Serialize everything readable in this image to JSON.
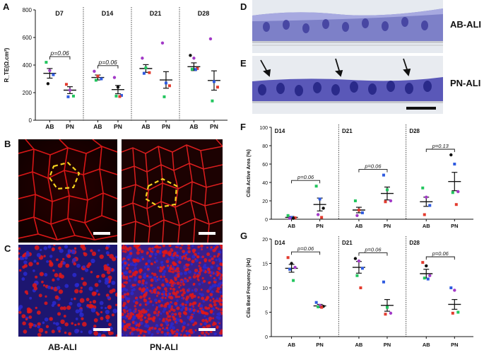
{
  "panel_labels": {
    "A": "A",
    "B": "B",
    "C": "C",
    "D": "D",
    "E": "E",
    "F": "F",
    "G": "G"
  },
  "image_captions": {
    "ab_ali_bottom": "AB-ALI",
    "pn_ali_bottom": "PN-ALI",
    "d_side": "AB-ALI",
    "e_side": "PN-ALI"
  },
  "colors": {
    "green": "#22c55e",
    "red": "#e33b2e",
    "blue": "#2f5be0",
    "purple": "#a23ac7",
    "black": "#111111",
    "fluor_red": "#e21818",
    "fluor_blue": "#2a2ad0",
    "stain_purple": "#6a4fa8",
    "dash_yellow": "#f5d21e"
  },
  "chart_data": [
    {
      "id": "A",
      "type": "scatter",
      "ylabel": "R_TE(Ω.cm²)",
      "ylim": [
        0,
        800
      ],
      "yticks": [
        0,
        200,
        400,
        600,
        800
      ],
      "groups": [
        "D7",
        "D14",
        "D21",
        "D28"
      ],
      "categories": [
        "AB",
        "PN"
      ],
      "annotations": [
        {
          "group": 0,
          "text": "p=0.06"
        },
        {
          "group": 1,
          "text": "p=0.06"
        }
      ],
      "series": [
        {
          "group": 0,
          "cat": 0,
          "mean": 340,
          "sem": 35,
          "points": [
            {
              "v": 420,
              "c": "green"
            },
            {
              "v": 360,
              "c": "purple"
            },
            {
              "v": 330,
              "c": "blue"
            },
            {
              "v": 265,
              "c": "black"
            }
          ]
        },
        {
          "group": 0,
          "cat": 1,
          "mean": 218,
          "sem": 25,
          "points": [
            {
              "v": 260,
              "c": "red"
            },
            {
              "v": 218,
              "c": "purple"
            },
            {
              "v": 175,
              "c": "green"
            },
            {
              "v": 170,
              "c": "blue"
            }
          ]
        },
        {
          "group": 1,
          "cat": 0,
          "mean": 310,
          "sem": 18,
          "points": [
            {
              "v": 355,
              "c": "purple"
            },
            {
              "v": 320,
              "c": "red"
            },
            {
              "v": 300,
              "c": "blue"
            },
            {
              "v": 290,
              "c": "green"
            }
          ]
        },
        {
          "group": 1,
          "cat": 1,
          "mean": 222,
          "sem": 30,
          "points": [
            {
              "v": 310,
              "c": "purple"
            },
            {
              "v": 240,
              "c": "black"
            },
            {
              "v": 180,
              "c": "blue"
            },
            {
              "v": 175,
              "c": "green"
            },
            {
              "v": 172,
              "c": "red"
            }
          ]
        },
        {
          "group": 2,
          "cat": 0,
          "mean": 375,
          "sem": 28,
          "points": [
            {
              "v": 450,
              "c": "purple"
            },
            {
              "v": 380,
              "c": "green"
            },
            {
              "v": 345,
              "c": "red"
            },
            {
              "v": 340,
              "c": "blue"
            }
          ]
        },
        {
          "group": 2,
          "cat": 1,
          "mean": 292,
          "sem": 60,
          "points": [
            {
              "v": 560,
              "c": "purple"
            },
            {
              "v": 270,
              "c": "blue"
            },
            {
              "v": 250,
              "c": "red"
            },
            {
              "v": 170,
              "c": "green"
            }
          ]
        },
        {
          "group": 3,
          "cat": 0,
          "mean": 388,
          "sem": 28,
          "points": [
            {
              "v": 470,
              "c": "black"
            },
            {
              "v": 450,
              "c": "purple"
            },
            {
              "v": 375,
              "c": "red"
            },
            {
              "v": 370,
              "c": "green"
            },
            {
              "v": 368,
              "c": "blue"
            }
          ]
        },
        {
          "group": 3,
          "cat": 1,
          "mean": 288,
          "sem": 70,
          "points": [
            {
              "v": 590,
              "c": "purple"
            },
            {
              "v": 280,
              "c": "blue"
            },
            {
              "v": 240,
              "c": "red"
            },
            {
              "v": 140,
              "c": "green"
            }
          ]
        }
      ]
    },
    {
      "id": "F",
      "type": "scatter",
      "ylabel": "Cilia Active Area (%)",
      "ylim": [
        0,
        100
      ],
      "yticks": [
        0,
        20,
        40,
        60,
        80,
        100
      ],
      "groups": [
        "D14",
        "D21",
        "D28"
      ],
      "categories": [
        "AB",
        "PN"
      ],
      "annotations": [
        {
          "group": 0,
          "text": "p=0.06"
        },
        {
          "group": 1,
          "text": "p=0.06"
        },
        {
          "group": 2,
          "text": "p=0.13"
        }
      ],
      "series": [
        {
          "group": 0,
          "cat": 0,
          "mean": 2,
          "sem": 1,
          "points": [
            {
              "v": 4,
              "c": "green"
            },
            {
              "v": 2,
              "c": "blue"
            },
            {
              "v": 1.5,
              "c": "red"
            },
            {
              "v": 1,
              "c": "purple"
            },
            {
              "v": 1,
              "c": "black"
            }
          ]
        },
        {
          "group": 0,
          "cat": 1,
          "mean": 16,
          "sem": 7,
          "points": [
            {
              "v": 36,
              "c": "green"
            },
            {
              "v": 22,
              "c": "blue"
            },
            {
              "v": 12,
              "c": "black"
            },
            {
              "v": 5,
              "c": "purple"
            },
            {
              "v": 2,
              "c": "red"
            }
          ]
        },
        {
          "group": 1,
          "cat": 0,
          "mean": 10,
          "sem": 3,
          "points": [
            {
              "v": 20,
              "c": "green"
            },
            {
              "v": 10,
              "c": "red"
            },
            {
              "v": 7,
              "c": "blue"
            },
            {
              "v": 4,
              "c": "purple"
            }
          ]
        },
        {
          "group": 1,
          "cat": 1,
          "mean": 28,
          "sem": 7,
          "points": [
            {
              "v": 48,
              "c": "blue"
            },
            {
              "v": 32,
              "c": "green"
            },
            {
              "v": 20,
              "c": "purple"
            },
            {
              "v": 19,
              "c": "red"
            }
          ]
        },
        {
          "group": 2,
          "cat": 0,
          "mean": 19,
          "sem": 5,
          "points": [
            {
              "v": 34,
              "c": "green"
            },
            {
              "v": 24,
              "c": "purple"
            },
            {
              "v": 15,
              "c": "blue"
            },
            {
              "v": 5,
              "c": "red"
            }
          ]
        },
        {
          "group": 2,
          "cat": 1,
          "mean": 41,
          "sem": 10,
          "points": [
            {
              "v": 70,
              "c": "black"
            },
            {
              "v": 60,
              "c": "blue"
            },
            {
              "v": 30,
              "c": "purple"
            },
            {
              "v": 29,
              "c": "green"
            },
            {
              "v": 16,
              "c": "red"
            }
          ]
        }
      ]
    },
    {
      "id": "G",
      "type": "scatter",
      "ylabel": "Cilia Beat Frequency (Hz)",
      "ylim": [
        0,
        20
      ],
      "yticks": [
        0,
        5,
        10,
        15,
        20
      ],
      "groups": [
        "D14",
        "D21",
        "D28"
      ],
      "categories": [
        "AB",
        "PN"
      ],
      "annotations": [
        {
          "group": 0,
          "text": "p=0.06"
        },
        {
          "group": 1,
          "text": "p=0.06"
        },
        {
          "group": 2,
          "text": "p=0.06"
        }
      ],
      "series": [
        {
          "group": 0,
          "cat": 0,
          "mean": 14,
          "sem": 0.8,
          "points": [
            {
              "v": 16.2,
              "c": "red"
            },
            {
              "v": 15,
              "c": "black"
            },
            {
              "v": 14.2,
              "c": "purple"
            },
            {
              "v": 13.8,
              "c": "blue"
            },
            {
              "v": 11.5,
              "c": "green"
            }
          ]
        },
        {
          "group": 0,
          "cat": 1,
          "mean": 6.3,
          "sem": 0.3,
          "points": [
            {
              "v": 7.0,
              "c": "blue"
            },
            {
              "v": 6.4,
              "c": "purple"
            },
            {
              "v": 6.2,
              "c": "black"
            },
            {
              "v": 6.1,
              "c": "green"
            },
            {
              "v": 6.0,
              "c": "red"
            }
          ]
        },
        {
          "group": 1,
          "cat": 0,
          "mean": 14.2,
          "sem": 1.2,
          "points": [
            {
              "v": 16,
              "c": "black"
            },
            {
              "v": 15.5,
              "c": "purple"
            },
            {
              "v": 14,
              "c": "blue"
            },
            {
              "v": 12.5,
              "c": "green"
            },
            {
              "v": 10,
              "c": "red"
            }
          ]
        },
        {
          "group": 1,
          "cat": 1,
          "mean": 6.4,
          "sem": 1.2,
          "points": [
            {
              "v": 11.2,
              "c": "blue"
            },
            {
              "v": 6,
              "c": "green"
            },
            {
              "v": 4.8,
              "c": "purple"
            },
            {
              "v": 4.6,
              "c": "red"
            }
          ]
        },
        {
          "group": 2,
          "cat": 0,
          "mean": 12.9,
          "sem": 0.9,
          "points": [
            {
              "v": 15.2,
              "c": "red"
            },
            {
              "v": 14.5,
              "c": "black"
            },
            {
              "v": 12.5,
              "c": "purple"
            },
            {
              "v": 12,
              "c": "green"
            },
            {
              "v": 11.8,
              "c": "blue"
            }
          ]
        },
        {
          "group": 2,
          "cat": 1,
          "mean": 6.6,
          "sem": 1.0,
          "points": [
            {
              "v": 10,
              "c": "blue"
            },
            {
              "v": 9.5,
              "c": "purple"
            },
            {
              "v": 5,
              "c": "green"
            },
            {
              "v": 4.8,
              "c": "red"
            }
          ]
        }
      ]
    }
  ]
}
